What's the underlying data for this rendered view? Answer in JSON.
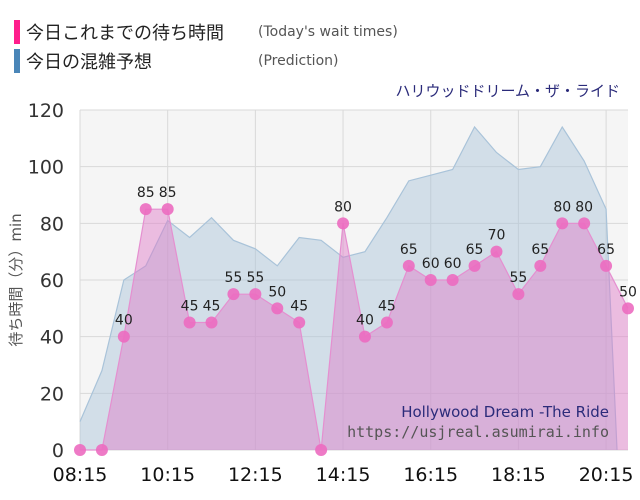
{
  "legend": {
    "today": {
      "label": "今日これまでの待ち時間",
      "sub": "(Today's wait times)",
      "color": "#ff1e8c"
    },
    "prediction": {
      "label": "今日の混雑予想",
      "sub": "(Prediction)",
      "color": "#4a86b8"
    }
  },
  "attraction_name": "ハリウッドドリーム・ザ・ライド",
  "watermark": {
    "title": "Hollywood Dream -The Ride",
    "url": "https://usjreal.asumirai.info"
  },
  "chart_data": {
    "type": "area",
    "ylabel": "待ち時間（分）min",
    "ylim": [
      0,
      120
    ],
    "yticks": [
      0,
      20,
      40,
      60,
      80,
      100,
      120
    ],
    "x_tick_labels": [
      "08:15",
      "10:15",
      "12:15",
      "14:15",
      "16:15",
      "18:15",
      "20:15"
    ],
    "xlim": [
      "08:15",
      "20:45"
    ],
    "grid": true,
    "series": [
      {
        "name": "今日これまでの待ち時間",
        "color": "#e86fc0",
        "x": [
          "08:15",
          "08:45",
          "09:15",
          "09:45",
          "10:15",
          "10:45",
          "11:15",
          "11:45",
          "12:15",
          "12:45",
          "13:15",
          "13:45",
          "14:15",
          "14:45",
          "15:15",
          "15:45",
          "16:15",
          "16:45",
          "17:15",
          "17:45",
          "18:15",
          "18:45",
          "19:15",
          "19:45",
          "20:15",
          "20:45"
        ],
        "values": [
          0,
          0,
          40,
          85,
          85,
          45,
          45,
          55,
          55,
          50,
          45,
          0,
          80,
          40,
          45,
          65,
          60,
          60,
          65,
          70,
          55,
          65,
          80,
          80,
          65,
          50
        ],
        "labels": [
          null,
          null,
          "40",
          "85",
          "85",
          "45",
          "45",
          "55",
          "55",
          "50",
          "45",
          null,
          "80",
          "40",
          "45",
          "65",
          "60",
          "60",
          "65",
          "70",
          "55",
          "65",
          "80",
          "80",
          "65",
          "50"
        ]
      },
      {
        "name": "今日の混雑予想",
        "color": "#a9c3d9",
        "x": [
          "08:15",
          "08:45",
          "09:15",
          "09:45",
          "10:15",
          "10:45",
          "11:15",
          "11:45",
          "12:15",
          "12:45",
          "13:15",
          "13:45",
          "14:15",
          "14:45",
          "15:15",
          "15:45",
          "16:15",
          "16:45",
          "17:15",
          "17:45",
          "18:15",
          "18:45",
          "19:15",
          "19:45",
          "20:15",
          "20:30"
        ],
        "values": [
          10,
          28,
          60,
          65,
          81,
          75,
          82,
          74,
          71,
          65,
          75,
          74,
          68,
          70,
          82,
          95,
          97,
          99,
          114,
          105,
          99,
          100,
          114,
          102,
          85,
          0
        ]
      }
    ]
  }
}
